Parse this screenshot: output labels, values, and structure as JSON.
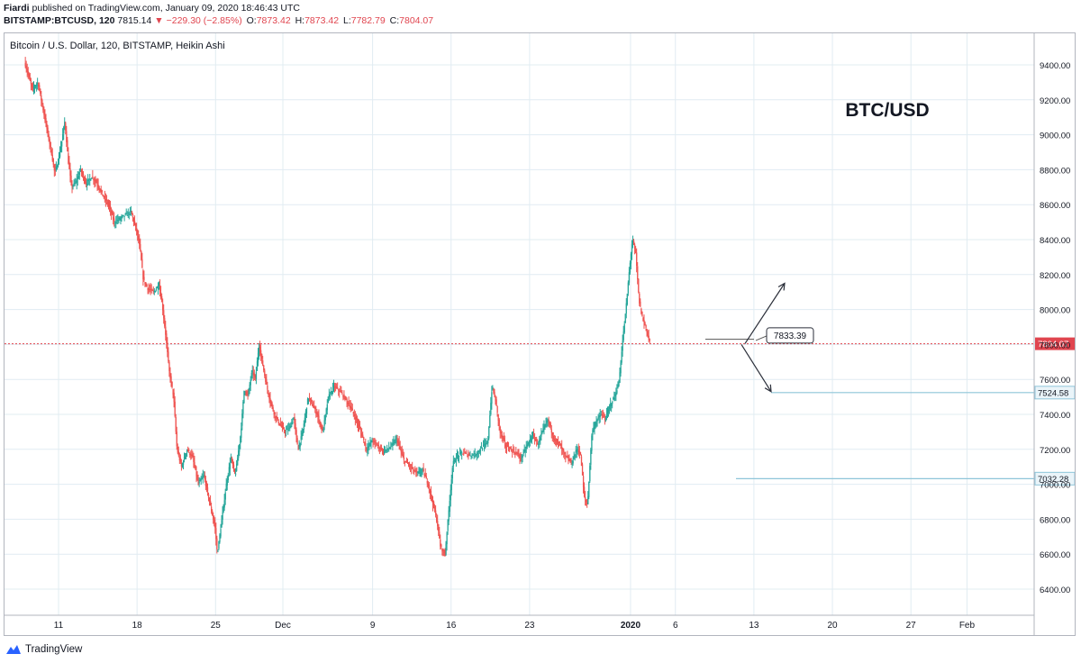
{
  "header": {
    "publisher": "Fiardi",
    "published_text": "published on TradingView.com, January 09, 2020 18:46:43 UTC",
    "symbol": "BITSTAMP:BTCUSD, 120",
    "last": "7815.14",
    "change": "−229.30 (−2.85%)",
    "o_label": "O:",
    "o_value": "7873.42",
    "h_label": "H:",
    "h_value": "7873.42",
    "l_label": "L:",
    "l_value": "7782.79",
    "c_label": "C:",
    "c_value": "7804.07"
  },
  "footer": {
    "brand": "TradingView"
  },
  "colors": {
    "up": "#26a69a",
    "down": "#ef5350",
    "grid": "#e1ecf2",
    "price_line": "#e0454f",
    "level_line": "#8ec5d9"
  },
  "chart_data": {
    "type": "candlestick",
    "title": "Bitcoin / U.S. Dollar, 120, BITSTAMP, Heikin Ashi",
    "annotation": "BTC/USD",
    "x_tick_labels": [
      "11",
      "18",
      "25",
      "Dec",
      "9",
      "16",
      "23",
      "2020",
      "6",
      "13",
      "20",
      "27",
      "Feb"
    ],
    "x_ticks_day_index": [
      0,
      7,
      14,
      20,
      28,
      35,
      42,
      51,
      55,
      62,
      69,
      76,
      81
    ],
    "y_ticks": [
      6400,
      6600,
      6800,
      7000,
      7200,
      7400,
      7600,
      7800,
      8000,
      8200,
      8400,
      8600,
      8800,
      9000,
      9200,
      9400
    ],
    "ylim": [
      6240,
      9500
    ],
    "current_price": 7804.07,
    "current_price_label": "7804.07",
    "levels": [
      {
        "label": "7524.58",
        "value": 7524.58
      },
      {
        "label": "7032.28",
        "value": 7032.28
      }
    ],
    "callout": {
      "label": "7833.39",
      "value": 7833.39
    },
    "arrows": [
      {
        "name": "up-projection",
        "from": 7833.39,
        "to": 8150
      },
      {
        "name": "down-projection",
        "from": 7800,
        "to": 7530
      }
    ],
    "grid": true,
    "series_path": [
      [
        -3.0,
        9420
      ],
      [
        -2.7,
        9350
      ],
      [
        -2.3,
        9260
      ],
      [
        -1.8,
        9300
      ],
      [
        -1.5,
        9200
      ],
      [
        -1.2,
        9100
      ],
      [
        -0.9,
        9000
      ],
      [
        -0.6,
        8900
      ],
      [
        -0.3,
        8780
      ],
      [
        0.0,
        8850
      ],
      [
        0.3,
        8950
      ],
      [
        0.6,
        9080
      ],
      [
        0.9,
        8850
      ],
      [
        1.2,
        8700
      ],
      [
        1.6,
        8730
      ],
      [
        2.0,
        8800
      ],
      [
        2.5,
        8720
      ],
      [
        3.0,
        8760
      ],
      [
        3.5,
        8720
      ],
      [
        4.0,
        8650
      ],
      [
        4.5,
        8600
      ],
      [
        5.0,
        8500
      ],
      [
        5.5,
        8520
      ],
      [
        6.0,
        8540
      ],
      [
        6.5,
        8560
      ],
      [
        7.0,
        8450
      ],
      [
        7.3,
        8350
      ],
      [
        7.6,
        8170
      ],
      [
        8.0,
        8120
      ],
      [
        8.5,
        8100
      ],
      [
        9.0,
        8140
      ],
      [
        9.3,
        8020
      ],
      [
        9.6,
        7850
      ],
      [
        9.9,
        7650
      ],
      [
        10.3,
        7500
      ],
      [
        10.6,
        7200
      ],
      [
        11.0,
        7100
      ],
      [
        11.5,
        7200
      ],
      [
        12.0,
        7150
      ],
      [
        12.5,
        7000
      ],
      [
        13.0,
        7050
      ],
      [
        13.5,
        6900
      ],
      [
        14.0,
        6750
      ],
      [
        14.2,
        6600
      ],
      [
        14.6,
        6800
      ],
      [
        15.0,
        7000
      ],
      [
        15.4,
        7150
      ],
      [
        15.8,
        7050
      ],
      [
        16.3,
        7300
      ],
      [
        16.6,
        7550
      ],
      [
        16.9,
        7500
      ],
      [
        17.3,
        7650
      ],
      [
        17.6,
        7600
      ],
      [
        17.9,
        7800
      ],
      [
        18.2,
        7700
      ],
      [
        18.6,
        7560
      ],
      [
        18.9,
        7480
      ],
      [
        19.3,
        7400
      ],
      [
        19.7,
        7350
      ],
      [
        20.2,
        7300
      ],
      [
        20.6,
        7320
      ],
      [
        21.0,
        7380
      ],
      [
        21.4,
        7200
      ],
      [
        21.8,
        7300
      ],
      [
        22.3,
        7500
      ],
      [
        22.7,
        7450
      ],
      [
        23.1,
        7400
      ],
      [
        23.6,
        7300
      ],
      [
        24.1,
        7500
      ],
      [
        24.6,
        7560
      ],
      [
        25.0,
        7540
      ],
      [
        25.5,
        7500
      ],
      [
        26.0,
        7450
      ],
      [
        26.5,
        7380
      ],
      [
        27.0,
        7300
      ],
      [
        27.5,
        7200
      ],
      [
        28.0,
        7250
      ],
      [
        28.5,
        7220
      ],
      [
        29.0,
        7190
      ],
      [
        29.6,
        7210
      ],
      [
        30.2,
        7260
      ],
      [
        30.8,
        7140
      ],
      [
        31.4,
        7100
      ],
      [
        32.0,
        7060
      ],
      [
        32.5,
        7080
      ],
      [
        33.0,
        7000
      ],
      [
        33.5,
        6870
      ],
      [
        33.8,
        6780
      ],
      [
        34.1,
        6640
      ],
      [
        34.5,
        6600
      ],
      [
        34.9,
        6900
      ],
      [
        35.2,
        7120
      ],
      [
        35.6,
        7160
      ],
      [
        36.0,
        7180
      ],
      [
        36.6,
        7170
      ],
      [
        37.2,
        7170
      ],
      [
        37.8,
        7210
      ],
      [
        38.3,
        7240
      ],
      [
        38.7,
        7560
      ],
      [
        39.0,
        7480
      ],
      [
        39.4,
        7300
      ],
      [
        39.9,
        7220
      ],
      [
        40.3,
        7200
      ],
      [
        40.8,
        7180
      ],
      [
        41.3,
        7150
      ],
      [
        41.8,
        7220
      ],
      [
        42.3,
        7280
      ],
      [
        42.8,
        7230
      ],
      [
        43.3,
        7320
      ],
      [
        43.7,
        7370
      ],
      [
        44.2,
        7260
      ],
      [
        44.7,
        7230
      ],
      [
        45.2,
        7160
      ],
      [
        45.8,
        7120
      ],
      [
        46.3,
        7210
      ],
      [
        46.6,
        7160
      ],
      [
        46.9,
        6930
      ],
      [
        47.2,
        6880
      ],
      [
        47.6,
        7300
      ],
      [
        48.0,
        7360
      ],
      [
        48.4,
        7400
      ],
      [
        48.8,
        7370
      ],
      [
        49.2,
        7450
      ],
      [
        49.6,
        7500
      ],
      [
        50.0,
        7580
      ],
      [
        50.3,
        7800
      ],
      [
        50.6,
        7980
      ],
      [
        50.9,
        8200
      ],
      [
        51.2,
        8400
      ],
      [
        51.5,
        8320
      ],
      [
        51.8,
        8050
      ],
      [
        52.1,
        7950
      ],
      [
        52.4,
        7900
      ],
      [
        52.7,
        7820
      ]
    ]
  }
}
